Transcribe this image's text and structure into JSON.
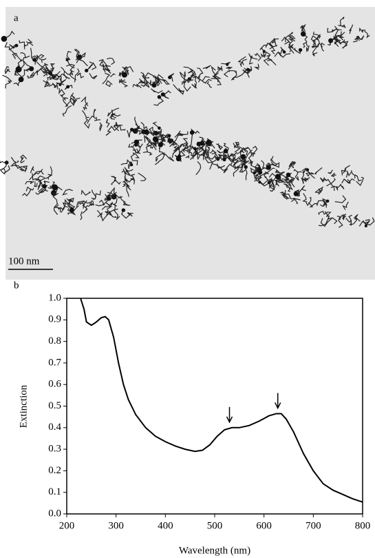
{
  "image_panel": {
    "label": "a",
    "scale_bar": "100 nm"
  },
  "chart_data": {
    "type": "line",
    "panel_label": "b",
    "x_label": "Wavelength (nm)",
    "y_label": "Extinction",
    "x": [
      228,
      235,
      240,
      250,
      260,
      270,
      278,
      285,
      295,
      305,
      315,
      325,
      340,
      360,
      380,
      400,
      420,
      440,
      460,
      475,
      490,
      505,
      520,
      535,
      550,
      570,
      590,
      610,
      625,
      635,
      645,
      660,
      680,
      700,
      720,
      740,
      760,
      780,
      800
    ],
    "series": [
      {
        "color": "#000000",
        "values": [
          1.0,
          0.95,
          0.89,
          0.875,
          0.89,
          0.91,
          0.915,
          0.9,
          0.82,
          0.7,
          0.6,
          0.53,
          0.46,
          0.4,
          0.36,
          0.335,
          0.315,
          0.3,
          0.29,
          0.295,
          0.32,
          0.36,
          0.39,
          0.4,
          0.4,
          0.41,
          0.43,
          0.455,
          0.465,
          0.465,
          0.44,
          0.38,
          0.28,
          0.2,
          0.14,
          0.11,
          0.09,
          0.07,
          0.055
        ]
      }
    ],
    "markers": [
      {
        "x": 530,
        "y": 0.4
      },
      {
        "x": 628,
        "y": 0.465
      }
    ],
    "xlim": [
      200,
      800
    ],
    "ylim": [
      0,
      1.0
    ],
    "xticks": [
      200,
      300,
      400,
      500,
      600,
      700,
      800
    ],
    "yticks": [
      {
        "value": 0,
        "label": "0.0"
      },
      0.1,
      0.2,
      0.3,
      0.4,
      0.5,
      0.6,
      0.7,
      0.8,
      0.9,
      {
        "value": 1,
        "label": "1.0"
      }
    ],
    "grid": false
  }
}
